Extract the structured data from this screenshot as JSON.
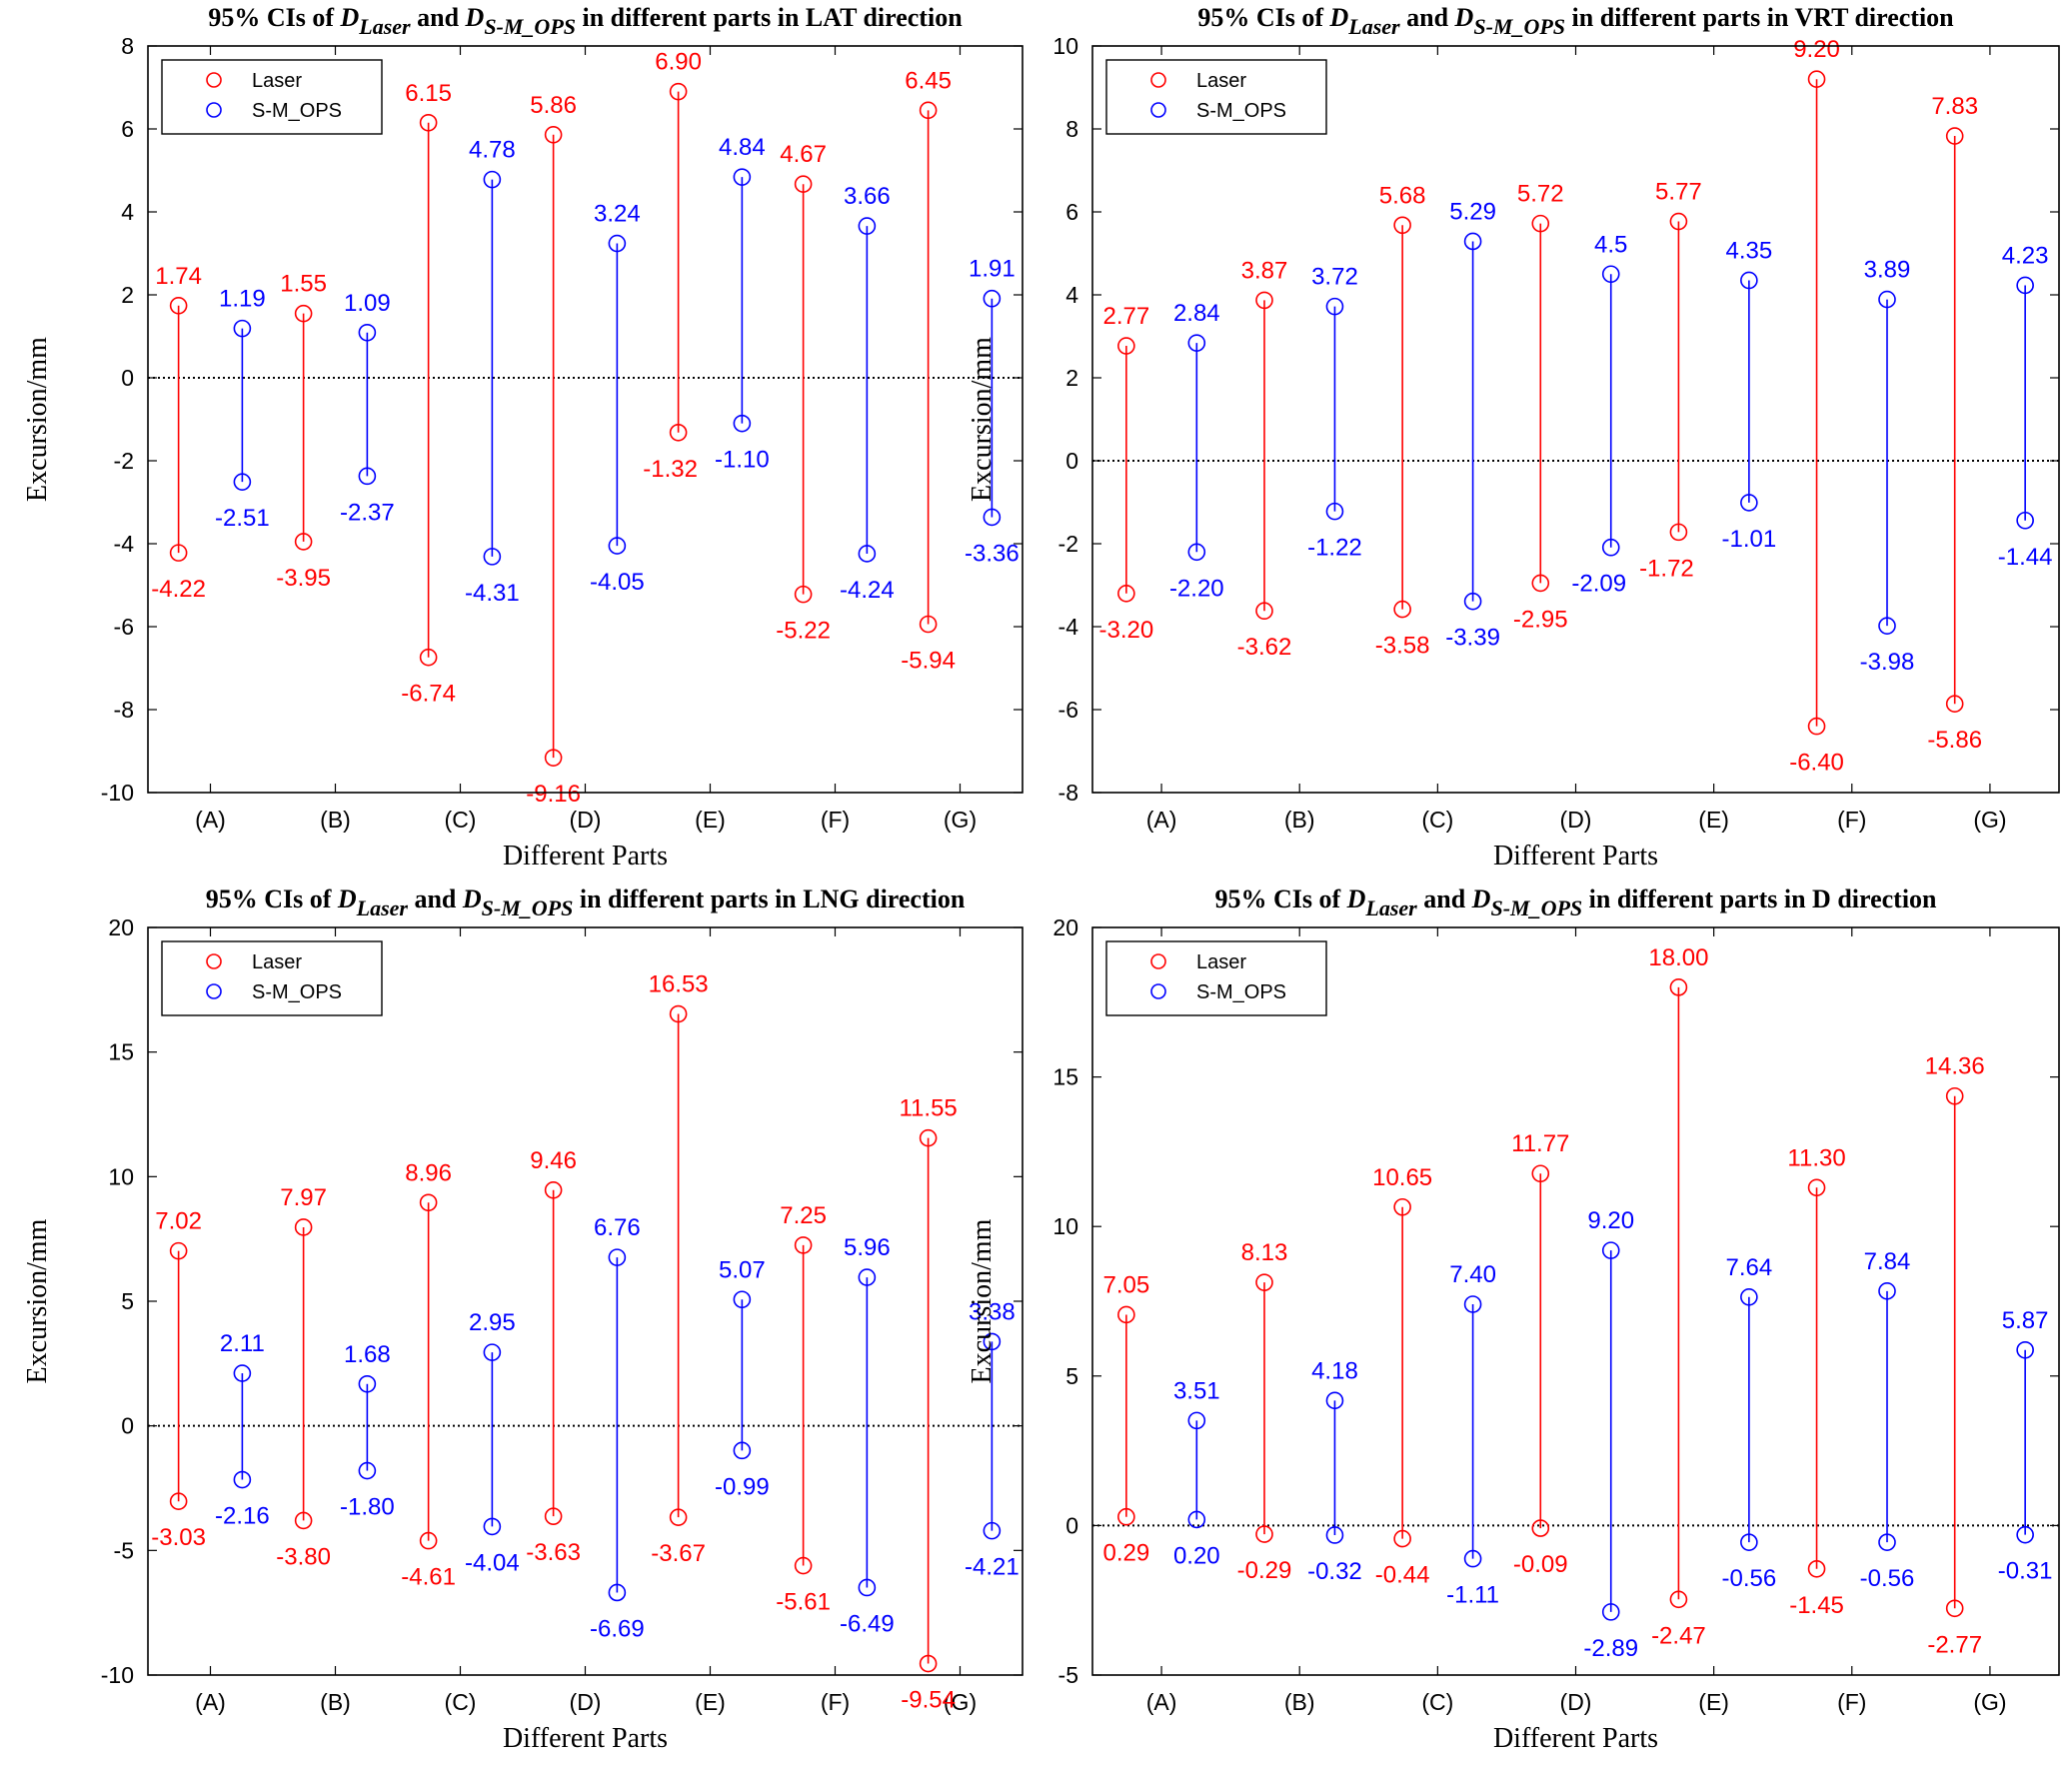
{
  "figure": {
    "colors": {
      "laser": "#ff0000",
      "smops": "#0000ff",
      "axis": "#000000"
    }
  },
  "chart_data": [
    {
      "type": "errorbar",
      "title": {
        "prefix": "95% CIs of ",
        "d1": "D",
        "sub1": "Laser",
        "mid": " and ",
        "d2": "D",
        "sub2": "S-M_OPS",
        "suffix": " in different parts in LAT direction"
      },
      "xlabel": "Different Parts",
      "ylabel": "Excursion/mm",
      "ylim": [
        -10,
        8
      ],
      "yticks": [
        -10,
        -8,
        -6,
        -4,
        -2,
        0,
        2,
        4,
        6,
        8
      ],
      "categories": [
        "(A)",
        "(B)",
        "(C)",
        "(D)",
        "(E)",
        "(F)",
        "(G)"
      ],
      "legend": [
        "Laser",
        "S-M_OPS"
      ],
      "series": [
        {
          "name": "Laser",
          "upper": [
            1.74,
            1.55,
            6.15,
            5.86,
            6.9,
            4.67,
            6.45
          ],
          "lower": [
            -4.22,
            -3.95,
            -6.74,
            -9.16,
            -1.32,
            -5.22,
            -5.94
          ],
          "upper_labels": [
            "1.74",
            "1.55",
            "6.15",
            "5.86",
            "6.90",
            "4.67",
            "6.45"
          ],
          "lower_labels": [
            "-4.22",
            "-3.95",
            "-6.74",
            "-9.16",
            "-1.32",
            "-5.22",
            "-5.94"
          ]
        },
        {
          "name": "S-M_OPS",
          "upper": [
            1.19,
            1.09,
            4.78,
            3.24,
            4.84,
            3.66,
            1.91
          ],
          "lower": [
            -2.51,
            -2.37,
            -4.31,
            -4.05,
            -1.1,
            -4.24,
            -3.36
          ],
          "upper_labels": [
            "1.19",
            "1.09",
            "4.78",
            "3.24",
            "4.84",
            "3.66",
            "1.91"
          ],
          "lower_labels": [
            "-2.51",
            "-2.37",
            "-4.31",
            "-4.05",
            "-1.10",
            "-4.24",
            "-3.36"
          ]
        }
      ]
    },
    {
      "type": "errorbar",
      "title": {
        "prefix": "95% CIs of ",
        "d1": "D",
        "sub1": "Laser",
        "mid": " and ",
        "d2": "D",
        "sub2": "S-M_OPS",
        "suffix": " in different parts in VRT direction"
      },
      "xlabel": "Different Parts",
      "ylabel": "Excursion/mm",
      "ylim": [
        -8,
        10
      ],
      "yticks": [
        -8,
        -6,
        -4,
        -2,
        0,
        2,
        4,
        6,
        8,
        10
      ],
      "categories": [
        "(A)",
        "(B)",
        "(C)",
        "(D)",
        "(E)",
        "(F)",
        "(G)"
      ],
      "legend": [
        "Laser",
        "S-M_OPS"
      ],
      "series": [
        {
          "name": "Laser",
          "upper": [
            2.77,
            3.87,
            5.68,
            5.72,
            5.77,
            9.2,
            7.83
          ],
          "lower": [
            -3.2,
            -3.62,
            -3.58,
            -2.95,
            -1.72,
            -6.4,
            -5.86
          ],
          "upper_labels": [
            "2.77",
            "3.87",
            "5.68",
            "5.72",
            "5.77",
            "9.20",
            "7.83"
          ],
          "lower_labels": [
            "-3.20",
            "-3.62",
            "-3.58",
            "-2.95",
            "-1.72",
            "-6.40",
            "-5.86"
          ]
        },
        {
          "name": "S-M_OPS",
          "upper": [
            2.84,
            3.72,
            5.29,
            4.5,
            4.35,
            3.89,
            4.23
          ],
          "lower": [
            -2.2,
            -1.22,
            -3.39,
            -2.09,
            -1.01,
            -3.98,
            -1.44
          ],
          "upper_labels": [
            "2.84",
            "3.72",
            "5.29",
            "4.5",
            "4.35",
            "3.89",
            "4.23"
          ],
          "lower_labels": [
            "-2.20",
            "-1.22",
            "-3.39",
            "-2.09",
            "-1.01",
            "-3.98",
            "-1.44"
          ]
        }
      ]
    },
    {
      "type": "errorbar",
      "title": {
        "prefix": "95% CIs of ",
        "d1": "D",
        "sub1": "Laser",
        "mid": " and ",
        "d2": "D",
        "sub2": "S-M_OPS",
        "suffix": " in different parts in LNG direction"
      },
      "xlabel": "Different Parts",
      "ylabel": "Excursion/mm",
      "ylim": [
        -10,
        20
      ],
      "yticks": [
        -10,
        -5,
        0,
        5,
        10,
        15,
        20
      ],
      "categories": [
        "(A)",
        "(B)",
        "(C)",
        "(D)",
        "(E)",
        "(F)",
        "(G)"
      ],
      "legend": [
        "Laser",
        "S-M_OPS"
      ],
      "series": [
        {
          "name": "Laser",
          "upper": [
            7.02,
            7.97,
            8.96,
            9.46,
            16.53,
            7.25,
            11.55
          ],
          "lower": [
            -3.03,
            -3.8,
            -4.61,
            -3.63,
            -3.67,
            -5.61,
            -9.54
          ],
          "upper_labels": [
            "7.02",
            "7.97",
            "8.96",
            "9.46",
            "16.53",
            "7.25",
            "11.55"
          ],
          "lower_labels": [
            "-3.03",
            "-3.80",
            "-4.61",
            "-3.63",
            "-3.67",
            "-5.61",
            "-9.54"
          ]
        },
        {
          "name": "S-M_OPS",
          "upper": [
            2.11,
            1.68,
            2.95,
            6.76,
            5.07,
            5.96,
            3.38
          ],
          "lower": [
            -2.16,
            -1.8,
            -4.04,
            -6.69,
            -0.99,
            -6.49,
            -4.21
          ],
          "upper_labels": [
            "2.11",
            "1.68",
            "2.95",
            "6.76",
            "5.07",
            "5.96",
            "3.38"
          ],
          "lower_labels": [
            "-2.16",
            "-1.80",
            "-4.04",
            "-6.69",
            "-0.99",
            "-6.49",
            "-4.21"
          ]
        }
      ]
    },
    {
      "type": "errorbar",
      "title": {
        "prefix": "95% CIs of ",
        "d1": "D",
        "sub1": "Laser",
        "mid": " and ",
        "d2": "D",
        "sub2": "S-M_OPS",
        "suffix": " in different parts in D direction"
      },
      "xlabel": "Different Parts",
      "ylabel": "Excursion/mm",
      "ylim": [
        -5,
        20
      ],
      "yticks": [
        -5,
        0,
        5,
        10,
        15,
        20
      ],
      "categories": [
        "(A)",
        "(B)",
        "(C)",
        "(D)",
        "(E)",
        "(F)",
        "(G)"
      ],
      "legend": [
        "Laser",
        "S-M_OPS"
      ],
      "series": [
        {
          "name": "Laser",
          "upper": [
            7.05,
            8.13,
            10.65,
            11.77,
            18.0,
            11.3,
            14.36
          ],
          "lower": [
            0.29,
            -0.29,
            -0.44,
            -0.09,
            -2.47,
            -1.45,
            -2.77
          ],
          "upper_labels": [
            "7.05",
            "8.13",
            "10.65",
            "11.77",
            "18.00",
            "11.30",
            "14.36"
          ],
          "lower_labels": [
            "0.29",
            "-0.29",
            "-0.44",
            "-0.09",
            "-2.47",
            "-1.45",
            "-2.77"
          ]
        },
        {
          "name": "S-M_OPS",
          "upper": [
            3.51,
            4.18,
            7.4,
            9.2,
            7.64,
            7.84,
            5.87
          ],
          "lower": [
            0.2,
            -0.32,
            -1.11,
            -2.89,
            -0.56,
            -0.56,
            -0.31
          ],
          "upper_labels": [
            "3.51",
            "4.18",
            "7.40",
            "9.20",
            "7.64",
            "7.84",
            "5.87"
          ],
          "lower_labels": [
            "0.20",
            "-0.32",
            "-1.11",
            "-2.89",
            "-0.56",
            "-0.56",
            "-0.31"
          ]
        }
      ]
    }
  ]
}
